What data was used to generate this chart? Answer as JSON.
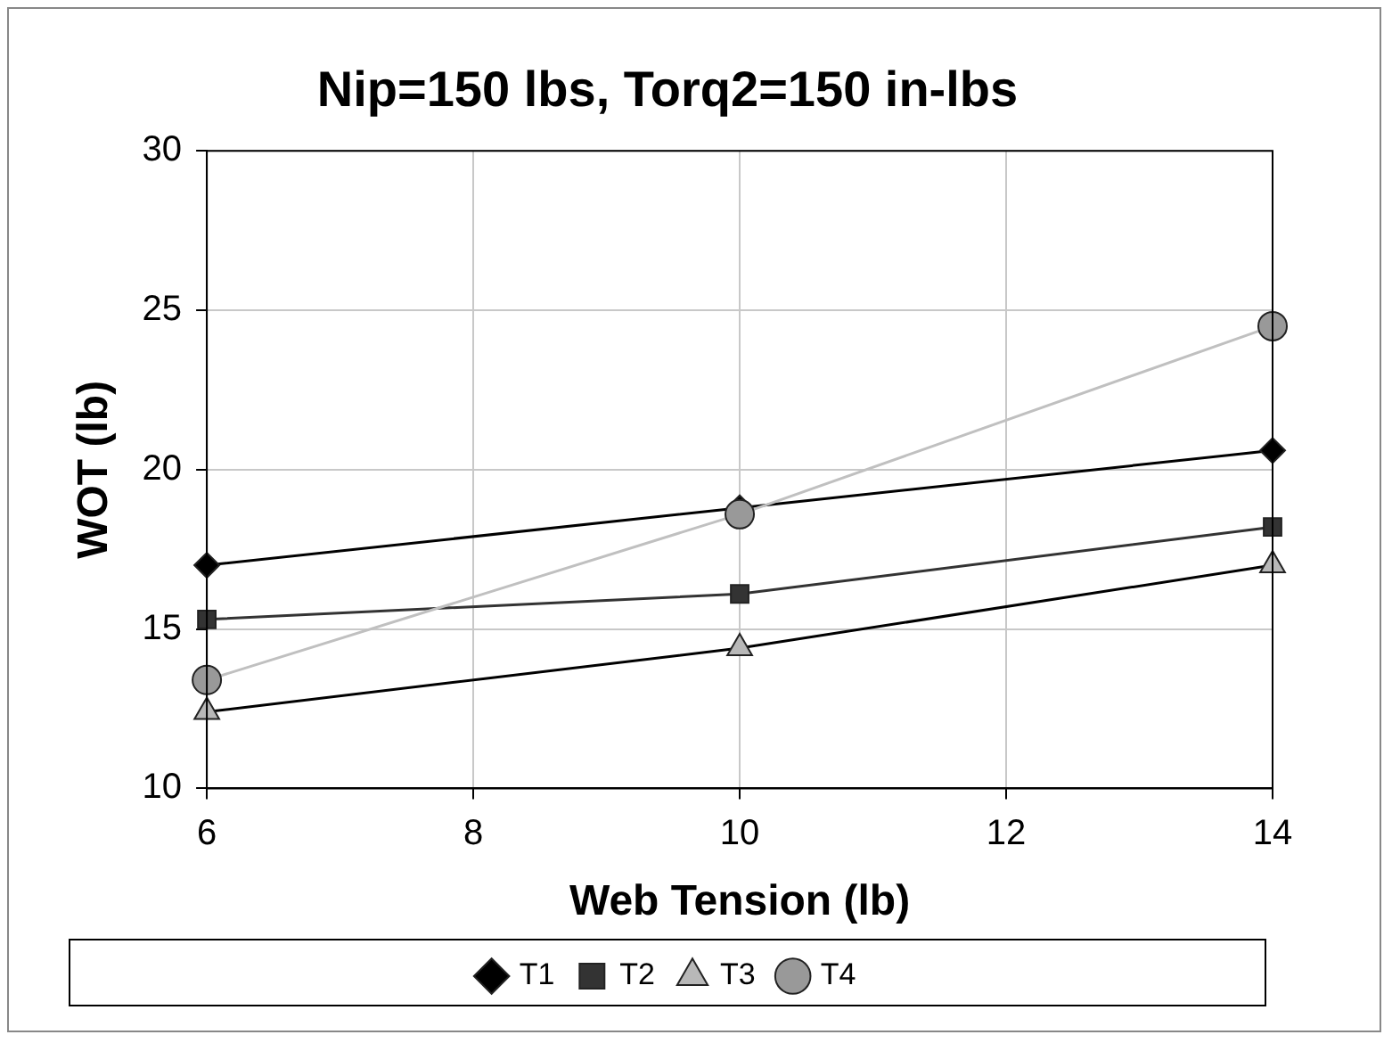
{
  "chart_data": {
    "type": "line",
    "title": "Nip=150 lbs, Torq2=150 in-lbs",
    "xlabel": "Web Tension (lb)",
    "ylabel": "WOT (lb)",
    "x": [
      6,
      10,
      14
    ],
    "series": [
      {
        "name": "T1",
        "color": "#000000",
        "marker": "diamond",
        "values": [
          17.0,
          18.8,
          20.6
        ]
      },
      {
        "name": "T2",
        "color": "#333333",
        "marker": "square",
        "values": [
          15.3,
          16.1,
          18.2
        ]
      },
      {
        "name": "T3",
        "color": "#b8b8b8",
        "marker": "triangle",
        "values": [
          12.4,
          14.4,
          17.0
        ]
      },
      {
        "name": "T4",
        "color": "#999999",
        "marker": "circle",
        "values": [
          13.4,
          18.6,
          24.5
        ]
      }
    ],
    "xlim": [
      6,
      14
    ],
    "xticks": [
      6,
      8,
      10,
      12,
      14
    ],
    "ylim": [
      10,
      30
    ],
    "yticks": [
      10,
      15,
      20,
      25,
      30
    ],
    "grid": true,
    "legend": "bottom"
  }
}
